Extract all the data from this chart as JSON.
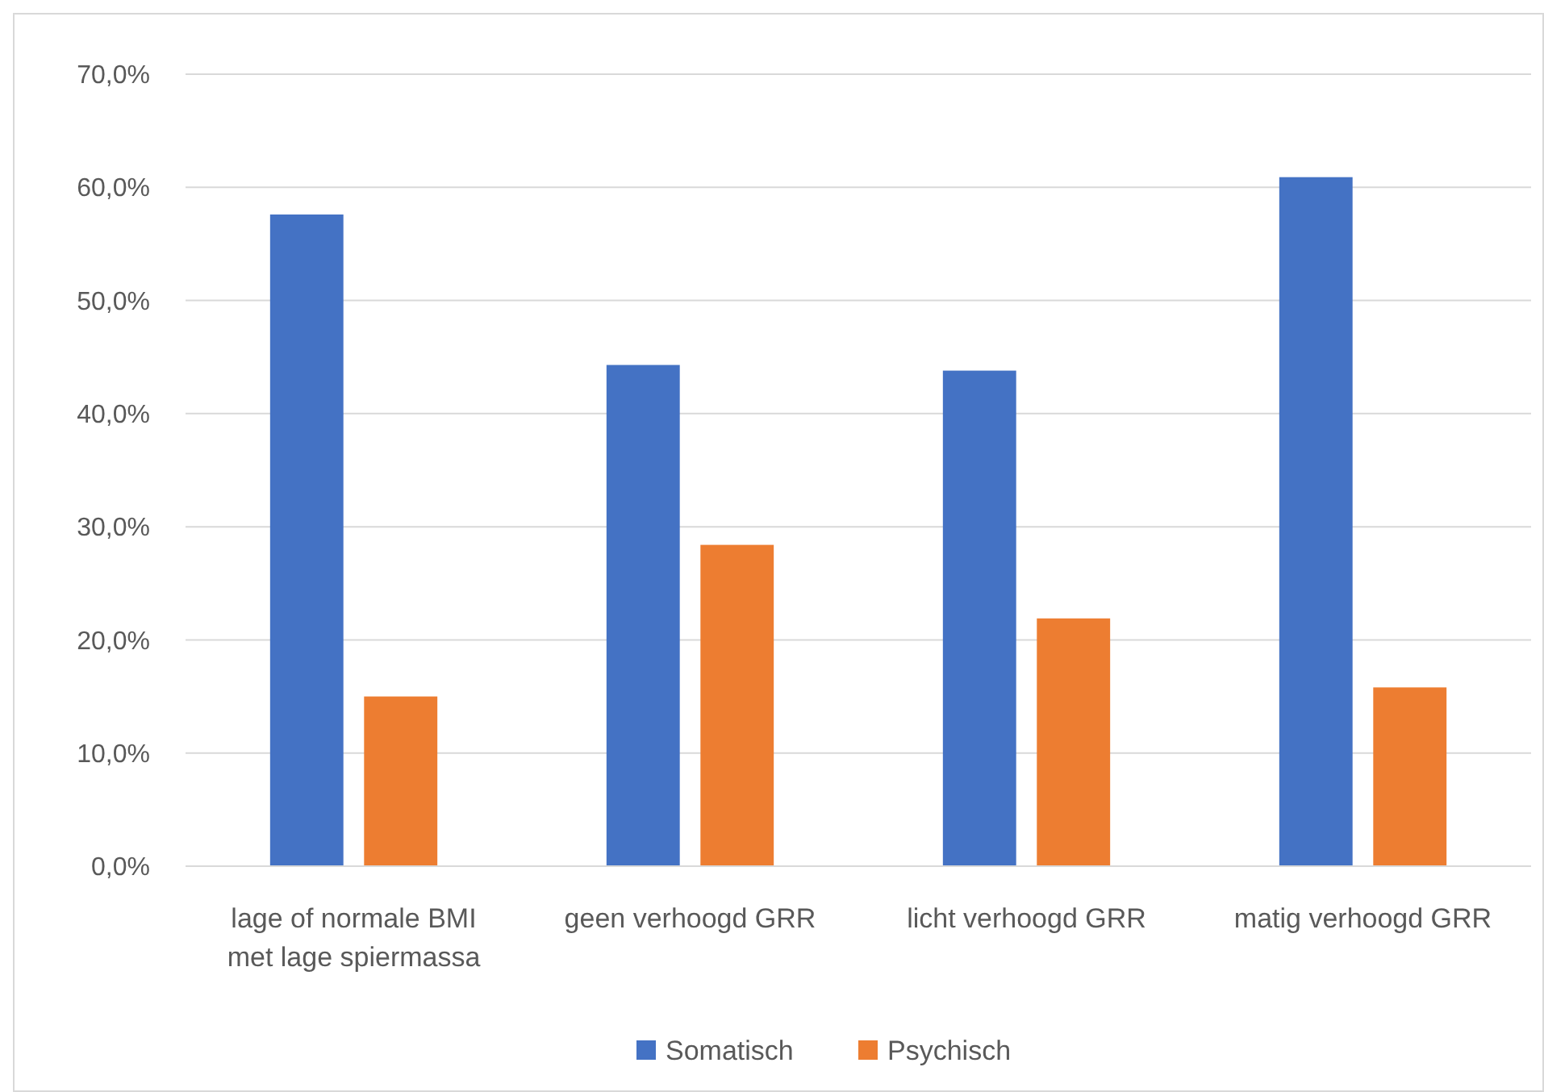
{
  "chart_data": {
    "type": "bar",
    "categories": [
      "lage of normale BMI met lage spiermassa",
      "geen verhoogd GRR",
      "licht verhoogd GRR",
      "matig verhoogd GRR"
    ],
    "series": [
      {
        "name": "Somatisch",
        "color": "#4472c4",
        "values": [
          57.6,
          44.3,
          43.8,
          60.9
        ]
      },
      {
        "name": "Psychisch",
        "color": "#ed7d31",
        "values": [
          15.0,
          28.4,
          21.9,
          15.8
        ]
      }
    ],
    "ylim": [
      0,
      70
    ],
    "yticks": [
      {
        "value": 0,
        "label": "0,0%"
      },
      {
        "value": 10,
        "label": "10,0%"
      },
      {
        "value": 20,
        "label": "20,0%"
      },
      {
        "value": 30,
        "label": "30,0%"
      },
      {
        "value": 40,
        "label": "40,0%"
      },
      {
        "value": 50,
        "label": "50,0%"
      },
      {
        "value": 60,
        "label": "60,0%"
      },
      {
        "value": 70,
        "label": "70,0%"
      }
    ],
    "grid": "y",
    "legend": "bottom"
  }
}
